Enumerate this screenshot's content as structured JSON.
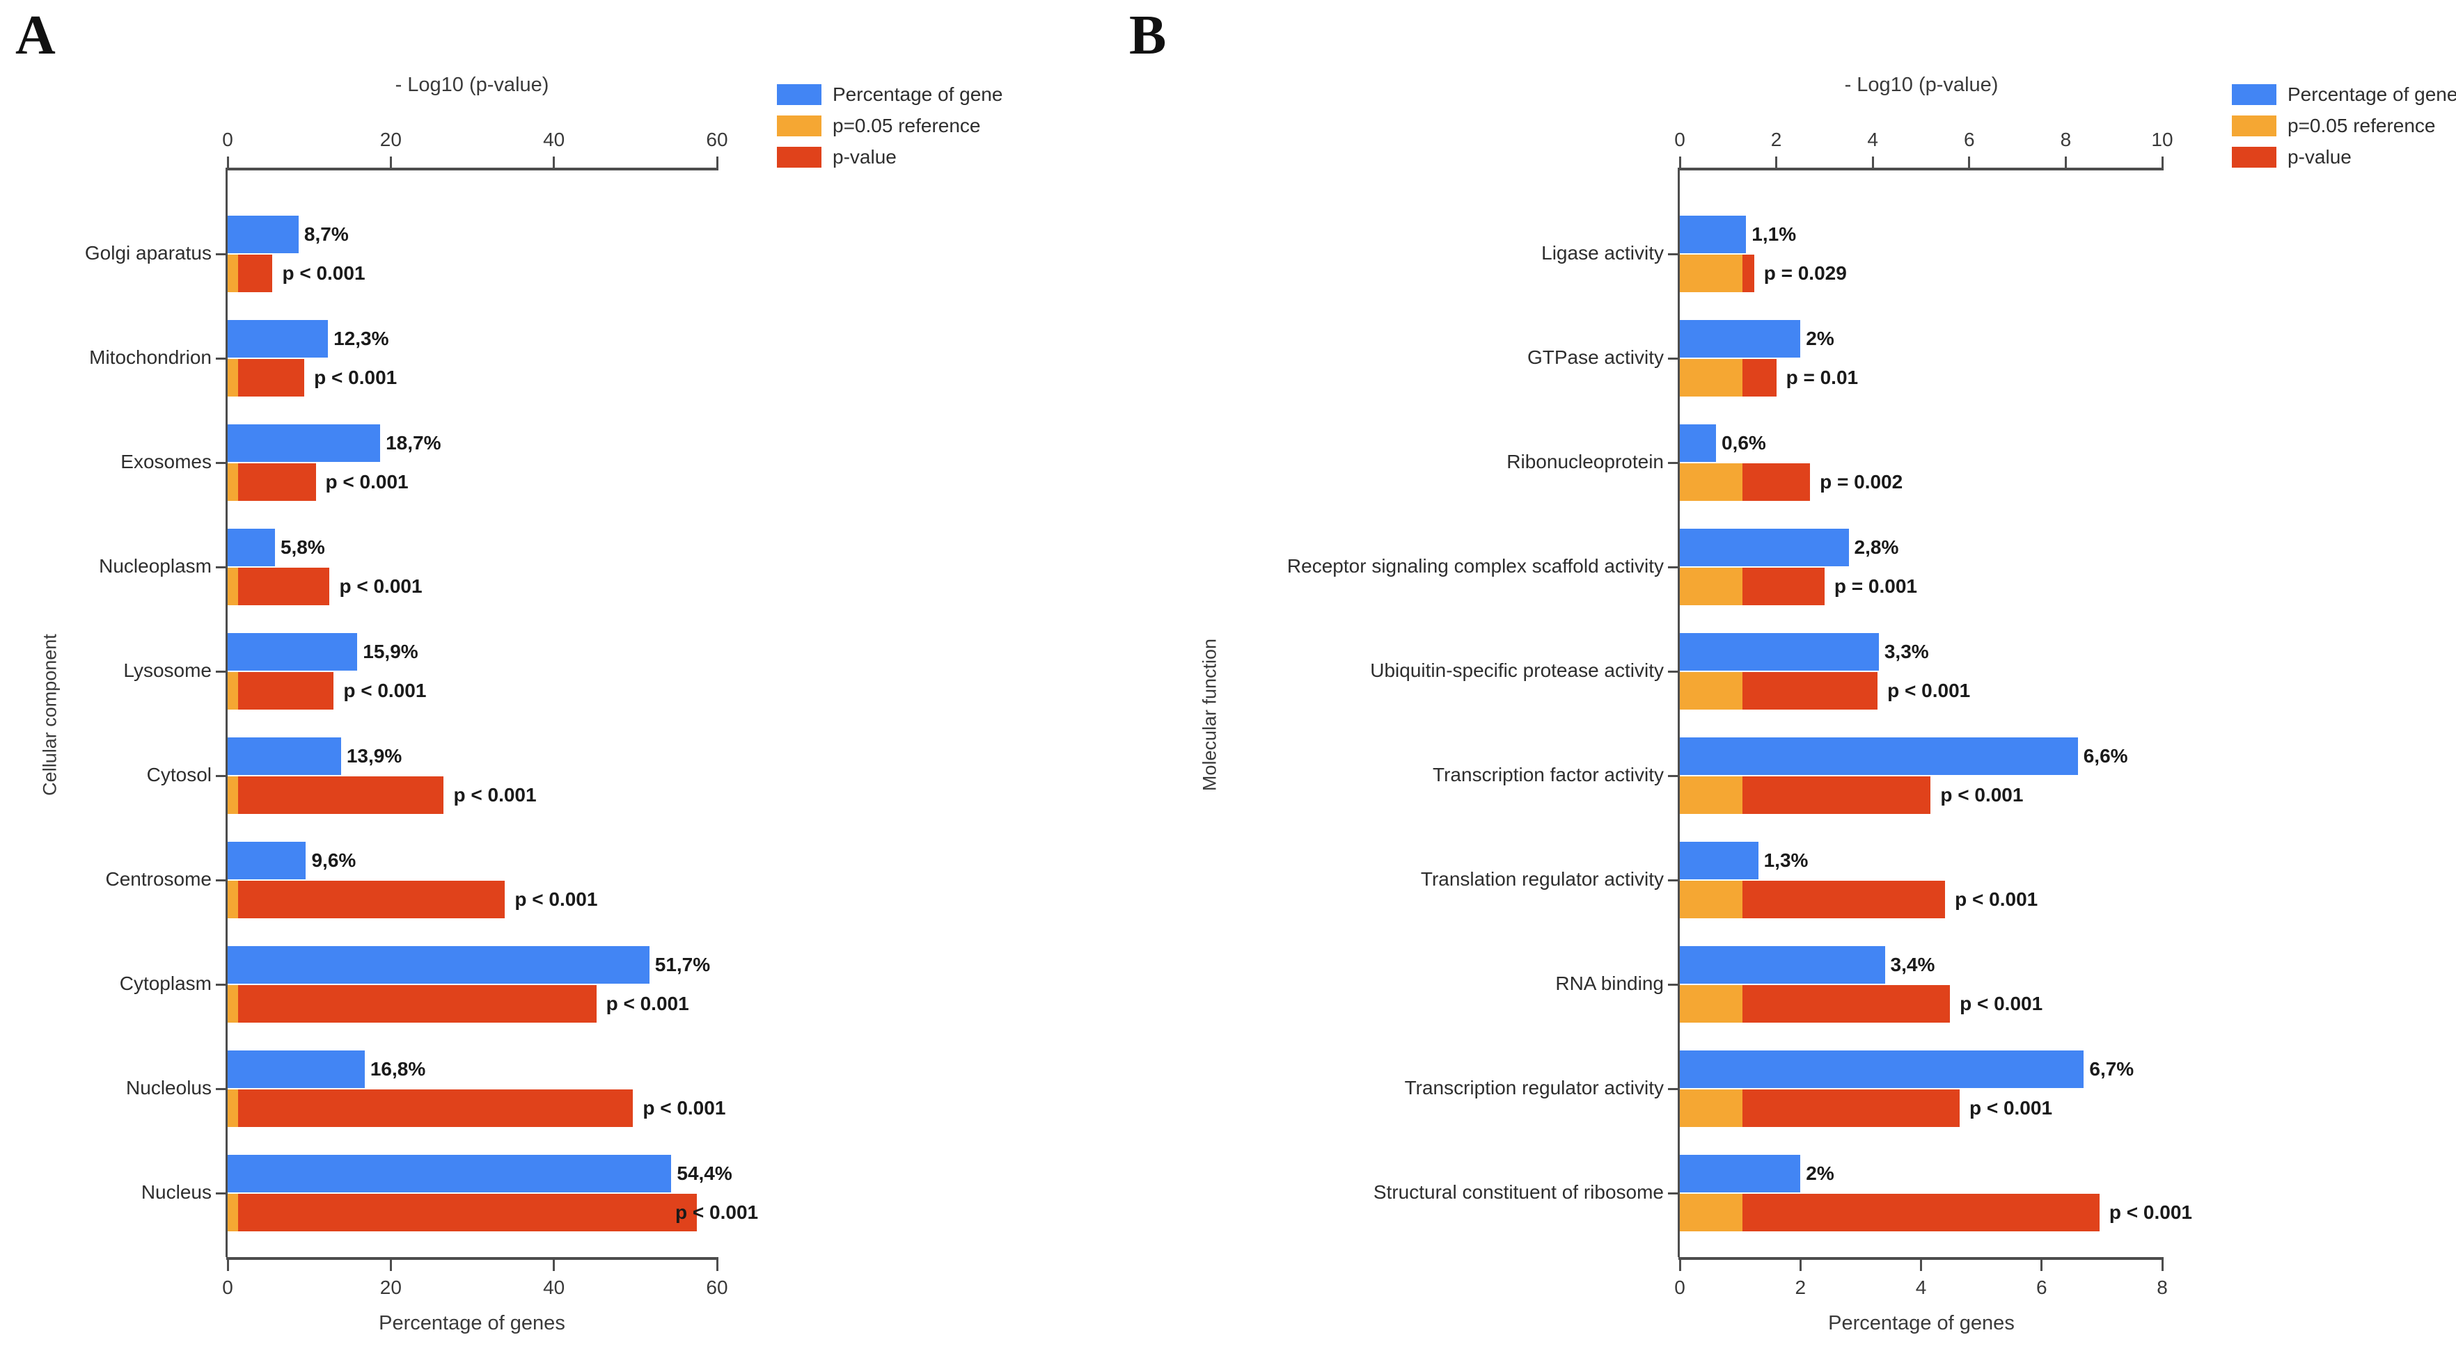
{
  "colors": {
    "percentage": "#4285F4",
    "reference": "#F5A733",
    "pvalue": "#E0421B",
    "axis": "#4d4d4d",
    "text": "#1a1a1a"
  },
  "legend": {
    "items": [
      {
        "label": "Percentage of gene",
        "color_key": "percentage"
      },
      {
        "label": "p=0.05 reference",
        "color_key": "reference"
      },
      {
        "label": "p-value",
        "color_key": "pvalue"
      }
    ]
  },
  "chart_data": [
    {
      "type": "bar",
      "orientation": "horizontal",
      "panel_label": "A",
      "ylabel": "Cellular component",
      "top_axis": {
        "title": "- Log10 (p-value)",
        "ticks": [
          0,
          20,
          40,
          60
        ],
        "max": 60
      },
      "bottom_axis": {
        "title": "Percentage of genes",
        "ticks": [
          0,
          20,
          40,
          60
        ],
        "max": 60
      },
      "reference_neglog10_p": 1.3,
      "legend_position": "top-right",
      "grid": false,
      "rows": [
        {
          "category": "Golgi aparatus",
          "pct": 8.7,
          "pct_label": "8,7%",
          "neglog10p": 5.5,
          "p_label": "p < 0.001"
        },
        {
          "category": "Mitochondrion",
          "pct": 12.3,
          "pct_label": "12,3%",
          "neglog10p": 9.4,
          "p_label": "p < 0.001"
        },
        {
          "category": "Exosomes",
          "pct": 18.7,
          "pct_label": "18,7%",
          "neglog10p": 10.8,
          "p_label": "p < 0.001"
        },
        {
          "category": "Nucleoplasm",
          "pct": 5.8,
          "pct_label": "5,8%",
          "neglog10p": 12.5,
          "p_label": "p < 0.001"
        },
        {
          "category": "Lysosome",
          "pct": 15.9,
          "pct_label": "15,9%",
          "neglog10p": 13.0,
          "p_label": "p < 0.001"
        },
        {
          "category": "Cytosol",
          "pct": 13.9,
          "pct_label": "13,9%",
          "neglog10p": 26.5,
          "p_label": "p < 0.001"
        },
        {
          "category": "Centrosome",
          "pct": 9.6,
          "pct_label": "9,6%",
          "neglog10p": 34.0,
          "p_label": "p < 0.001"
        },
        {
          "category": "Cytoplasm",
          "pct": 51.7,
          "pct_label": "51,7%",
          "neglog10p": 45.2,
          "p_label": "p < 0.001"
        },
        {
          "category": "Nucleolus",
          "pct": 16.8,
          "pct_label": "16,8%",
          "neglog10p": 49.7,
          "p_label": "p < 0.001"
        },
        {
          "category": "Nucleus",
          "pct": 54.4,
          "pct_label": "54,4%",
          "neglog10p": 57.5,
          "p_label": "p < 0.001"
        }
      ]
    },
    {
      "type": "bar",
      "orientation": "horizontal",
      "panel_label": "B",
      "ylabel": "Molecular function",
      "top_axis": {
        "title": "- Log10 (p-value)",
        "ticks": [
          0,
          2,
          4,
          6,
          8,
          10
        ],
        "max": 10
      },
      "bottom_axis": {
        "title": "Percentage of genes",
        "ticks": [
          0,
          2,
          4,
          6,
          8
        ],
        "max": 8
      },
      "reference_neglog10_p": 1.3,
      "legend_position": "top-right",
      "grid": false,
      "rows": [
        {
          "category": "Ligase activity",
          "pct": 1.1,
          "pct_label": "1,1%",
          "neglog10p": 1.54,
          "p_label": "p = 0.029"
        },
        {
          "category": "GTPase activity",
          "pct": 2.0,
          "pct_label": "2%",
          "neglog10p": 2.0,
          "p_label": "p = 0.01"
        },
        {
          "category": "Ribonucleoprotein",
          "pct": 0.6,
          "pct_label": "0,6%",
          "neglog10p": 2.7,
          "p_label": "p = 0.002"
        },
        {
          "category": "Receptor signaling complex scaffold activity",
          "pct": 2.8,
          "pct_label": "2,8%",
          "neglog10p": 3.0,
          "p_label": "p = 0.001"
        },
        {
          "category": "Ubiquitin-specific protease activity",
          "pct": 3.3,
          "pct_label": "3,3%",
          "neglog10p": 4.1,
          "p_label": "p < 0.001"
        },
        {
          "category": "Transcription factor activity",
          "pct": 6.6,
          "pct_label": "6,6%",
          "neglog10p": 5.2,
          "p_label": "p < 0.001"
        },
        {
          "category": "Translation regulator activity",
          "pct": 1.3,
          "pct_label": "1,3%",
          "neglog10p": 5.5,
          "p_label": "p < 0.001"
        },
        {
          "category": "RNA binding",
          "pct": 3.4,
          "pct_label": "3,4%",
          "neglog10p": 5.6,
          "p_label": "p < 0.001"
        },
        {
          "category": "Transcription regulator activity",
          "pct": 6.7,
          "pct_label": "6,7%",
          "neglog10p": 5.8,
          "p_label": "p < 0.001"
        },
        {
          "category": "Structural constituent of ribosome",
          "pct": 2.0,
          "pct_label": "2%",
          "neglog10p": 8.7,
          "p_label": "p < 0.001"
        }
      ]
    }
  ]
}
